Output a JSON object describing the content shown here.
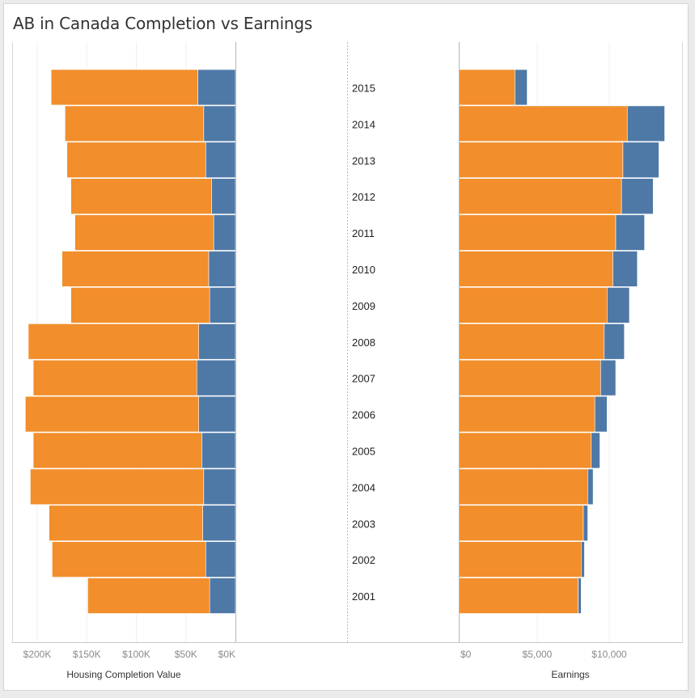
{
  "title": "AB in Canada Completion vs Earnings",
  "colors": {
    "orange": "#f28e2b",
    "blue": "#4e79a7"
  },
  "chart_data": [
    {
      "type": "bar",
      "orientation": "horizontal",
      "stacked": true,
      "direction": "left",
      "xlabel": "Housing Completion Value",
      "ticks": [
        "$200K",
        "$150K",
        "$100K",
        "$50K",
        "$0K"
      ],
      "tick_values": [
        200000,
        150000,
        100000,
        50000,
        0
      ],
      "xlim": [
        0,
        240000
      ],
      "categories": [
        "2015",
        "2014",
        "2013",
        "2012",
        "2011",
        "2010",
        "2009",
        "2008",
        "2007",
        "2006",
        "2005",
        "2004",
        "2003",
        "2002",
        "2001"
      ],
      "series": [
        {
          "color": "blue",
          "values": [
            38000,
            32000,
            30000,
            24000,
            22000,
            27000,
            26000,
            37000,
            39000,
            37000,
            34000,
            32000,
            33000,
            30000,
            26000
          ]
        },
        {
          "color": "orange",
          "values": [
            148000,
            140000,
            140000,
            142000,
            140000,
            148000,
            140000,
            172000,
            165000,
            175000,
            170000,
            175000,
            155000,
            155000,
            123000
          ]
        }
      ],
      "grid": true
    },
    {
      "type": "bar",
      "orientation": "horizontal",
      "stacked": true,
      "direction": "right",
      "xlabel": "Earnings",
      "ticks": [
        "$0",
        "$5,000",
        "$10,000"
      ],
      "tick_values": [
        0,
        5000,
        10000
      ],
      "xlim": [
        0,
        14500
      ],
      "categories": [
        "2015",
        "2014",
        "2013",
        "2012",
        "2011",
        "2010",
        "2009",
        "2008",
        "2007",
        "2006",
        "2005",
        "2004",
        "2003",
        "2002",
        "2001"
      ],
      "series": [
        {
          "color": "orange",
          "values": [
            3900,
            11700,
            11400,
            11300,
            10900,
            10700,
            10300,
            10100,
            9850,
            9450,
            9200,
            8950,
            8650,
            8500,
            8300
          ]
        },
        {
          "color": "blue",
          "values": [
            850,
            2600,
            2500,
            2200,
            2000,
            1700,
            1550,
            1400,
            1050,
            850,
            600,
            380,
            310,
            230,
            200
          ]
        }
      ],
      "grid": true
    }
  ]
}
